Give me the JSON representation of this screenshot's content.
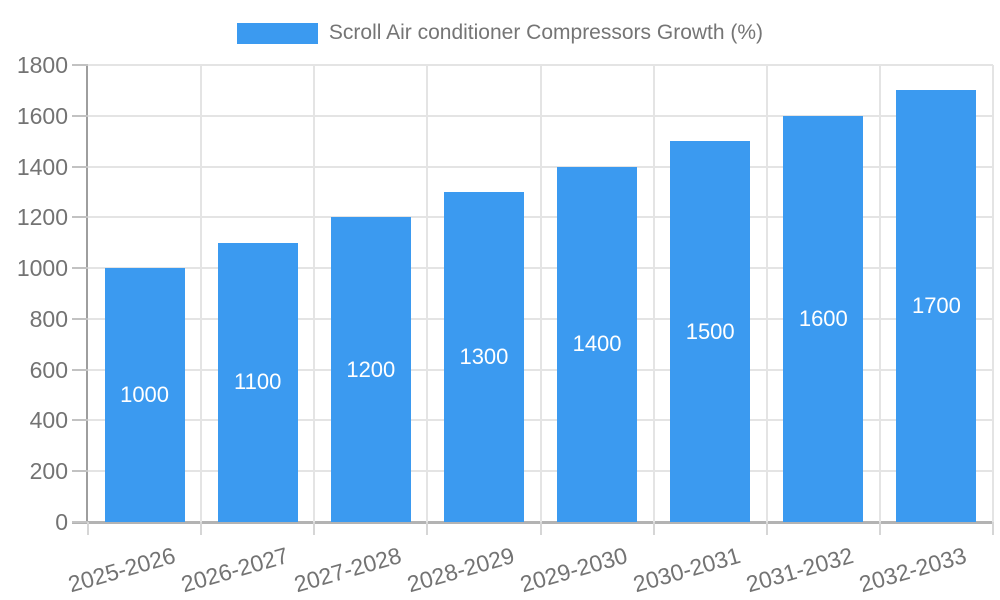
{
  "chart_data": {
    "type": "bar",
    "title": "",
    "legend": "Scroll Air conditioner Compressors Growth (%)",
    "legend_position": "top-center",
    "categories": [
      "2025-2026",
      "2026-2027",
      "2027-2028",
      "2028-2029",
      "2029-2030",
      "2030-2031",
      "2031-2032",
      "2032-2033"
    ],
    "series": [
      {
        "name": "Scroll Air conditioner Compressors Growth (%)",
        "values": [
          1000,
          1100,
          1200,
          1300,
          1400,
          1500,
          1600,
          1700
        ]
      }
    ],
    "xlabel": "",
    "ylabel": "",
    "ylim": [
      0,
      1800
    ],
    "ytick_step": 200,
    "ytick_labels": [
      "0",
      "200",
      "400",
      "600",
      "800",
      "1000",
      "1200",
      "1400",
      "1600",
      "1800"
    ],
    "grid": true,
    "bar_labels_shown": true,
    "colors": {
      "bar": "#3b9af0",
      "bar_label": "#ffffff",
      "axis_text": "#737373",
      "legend_text": "#757575",
      "gridline": "#e4e4e4",
      "axis_line": "#a6a6a6",
      "background": "#ffffff"
    }
  }
}
